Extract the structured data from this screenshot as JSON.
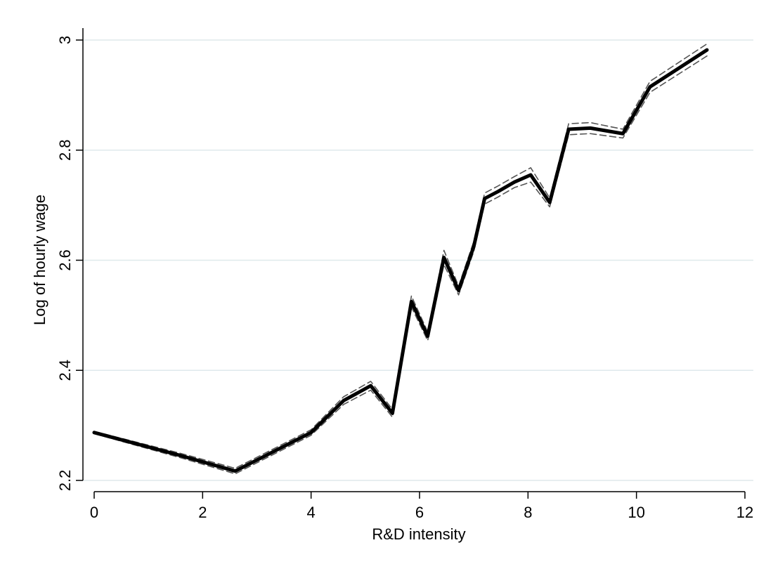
{
  "chart_data": {
    "type": "line",
    "xlabel": "R&D intensity",
    "ylabel": "Log of hourly wage",
    "xlim": [
      0,
      12
    ],
    "ylim": [
      2.2,
      3.0
    ],
    "xticks": [
      0,
      2,
      4,
      6,
      8,
      10,
      12
    ],
    "yticks": [
      2.2,
      2.4,
      2.6,
      2.8,
      3.0
    ],
    "xtick_labels": [
      "0",
      "2",
      "4",
      "6",
      "8",
      "10",
      "12"
    ],
    "ytick_labels": [
      "2.2",
      "2.4",
      "2.6",
      "2.8",
      "3"
    ],
    "grid": "horizontal",
    "colors": {
      "line": "#000000",
      "ci": "#555555",
      "grid": "#dfe9ec",
      "axis": "#000000"
    },
    "series": [
      {
        "x": [
          0.0,
          1.6,
          2.6,
          4.0,
          4.6,
          5.1,
          5.5,
          5.85,
          6.15,
          6.45,
          6.72,
          7.0,
          7.2,
          7.45,
          7.75,
          8.05,
          8.4,
          8.75,
          9.15,
          9.75,
          10.25,
          11.3
        ],
        "values": [
          2.287,
          2.245,
          2.217,
          2.287,
          2.345,
          2.372,
          2.322,
          2.525,
          2.462,
          2.605,
          2.545,
          2.625,
          2.712,
          2.725,
          2.742,
          2.755,
          2.705,
          2.838,
          2.84,
          2.83,
          2.915,
          2.982
        ]
      },
      {
        "x": [
          0.0,
          1.6,
          2.6,
          4.0,
          4.6,
          5.1,
          5.5,
          5.85,
          6.15,
          6.45,
          6.72,
          7.0,
          7.2,
          7.45,
          7.75,
          8.05,
          8.4,
          8.75,
          9.15,
          9.75,
          10.25,
          11.3
        ],
        "values": [
          2.289,
          2.249,
          2.222,
          2.292,
          2.352,
          2.38,
          2.329,
          2.535,
          2.47,
          2.618,
          2.553,
          2.634,
          2.722,
          2.735,
          2.752,
          2.768,
          2.713,
          2.848,
          2.85,
          2.838,
          2.925,
          2.993
        ]
      },
      {
        "x": [
          0.0,
          1.6,
          2.6,
          4.0,
          4.6,
          5.1,
          5.5,
          5.85,
          6.15,
          6.45,
          6.72,
          7.0,
          7.2,
          7.45,
          7.75,
          8.05,
          8.4,
          8.75,
          9.15,
          9.75,
          10.25,
          11.3
        ],
        "values": [
          2.285,
          2.241,
          2.212,
          2.282,
          2.338,
          2.364,
          2.315,
          2.515,
          2.454,
          2.592,
          2.537,
          2.616,
          2.702,
          2.715,
          2.732,
          2.742,
          2.697,
          2.828,
          2.83,
          2.822,
          2.905,
          2.971
        ]
      }
    ]
  }
}
